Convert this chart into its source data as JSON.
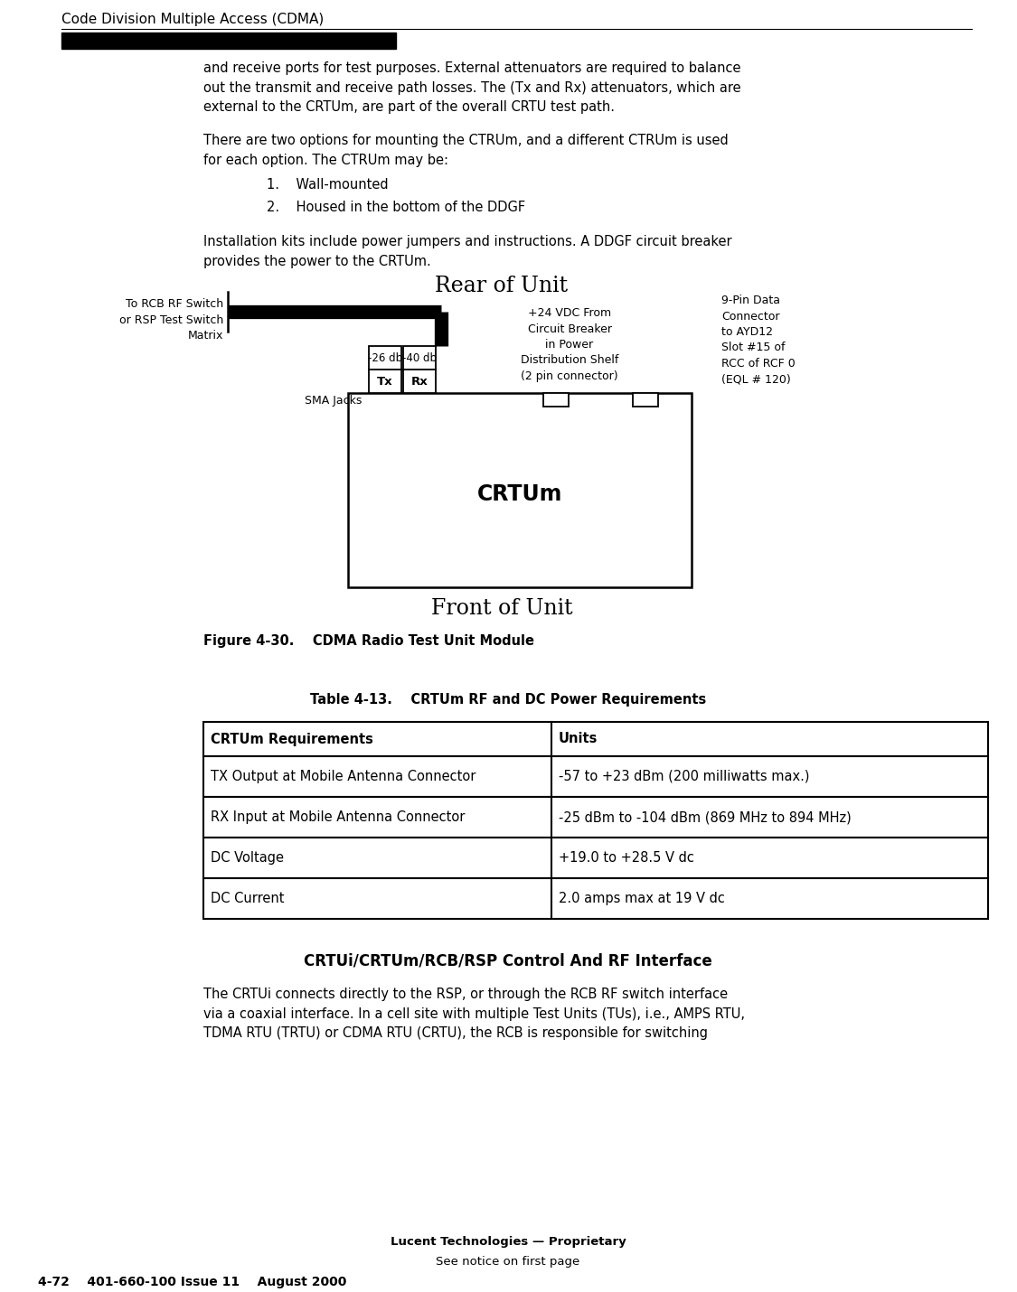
{
  "bg_color": "#ffffff",
  "header_text": "Code Division Multiple Access (CDMA)",
  "body_text_1": "and receive ports for test purposes. External attenuators are required to balance\nout the transmit and receive path losses. The (Tx and Rx) attenuators, which are\nexternal to the CRTUm, are part of the overall CRTU test path.",
  "body_text_2": "There are two options for mounting the CTRUm, and a different CTRUm is used\nfor each option. The CTRUm may be:",
  "list_item_1": "1.    Wall-mounted",
  "list_item_2": "2.    Housed in the bottom of the DDGF",
  "body_text_3": "Installation kits include power jumpers and instructions. A DDGF circuit breaker\nprovides the power to the CRTUm.",
  "diagram_rear_label": "Rear of Unit",
  "diagram_front_label": "Front of Unit",
  "diagram_crtum_label": "CRTUm",
  "diagram_sma_label": "SMA Jacks",
  "diagram_tx_label": "Tx",
  "diagram_rx_label": "Rx",
  "diagram_att1_label": "-26 db",
  "diagram_att2_label": "-40 db",
  "diagram_left_label": "To RCB RF Switch\nor RSP Test Switch\nMatrix",
  "diagram_center_label": "+24 VDC From\nCircuit Breaker\nin Power\nDistribution Shelf\n(2 pin connector)",
  "diagram_right_label": "9-Pin Data\nConnector\nto AYD12\nSlot #15 of\nRCC of RCF 0\n(EQL # 120)",
  "figure_caption": "Figure 4-30.    CDMA Radio Test Unit Module",
  "table_title": "Table 4-13.    CRTUm RF and DC Power Requirements",
  "table_headers": [
    "CRTUm Requirements",
    "Units"
  ],
  "table_rows": [
    [
      "TX Output at Mobile Antenna Connector",
      "-57 to +23 dBm (200 milliwatts max.)"
    ],
    [
      "RX Input at Mobile Antenna Connector",
      "-25 dBm to -104 dBm (869 MHz to 894 MHz)"
    ],
    [
      "DC Voltage",
      "+19.0 to +28.5 V dc"
    ],
    [
      "DC Current",
      "2.0 amps max at 19 V dc"
    ]
  ],
  "section_heading": "CRTUi/CRTUm/RCB/RSP Control And RF Interface",
  "body_text_4": "The CRTUi connects directly to the RSP, or through the RCB RF switch interface\nvia a coaxial interface. In a cell site with multiple Test Units (TUs), i.e., AMPS RTU,\nTDMA RTU (TRTU) or CDMA RTU (CRTU), the RCB is responsible for switching",
  "footer_line1": "Lucent Technologies — Proprietary",
  "footer_line2": "See notice on first page",
  "page_number": "4-72    401-660-100 Issue 11    August 2000"
}
